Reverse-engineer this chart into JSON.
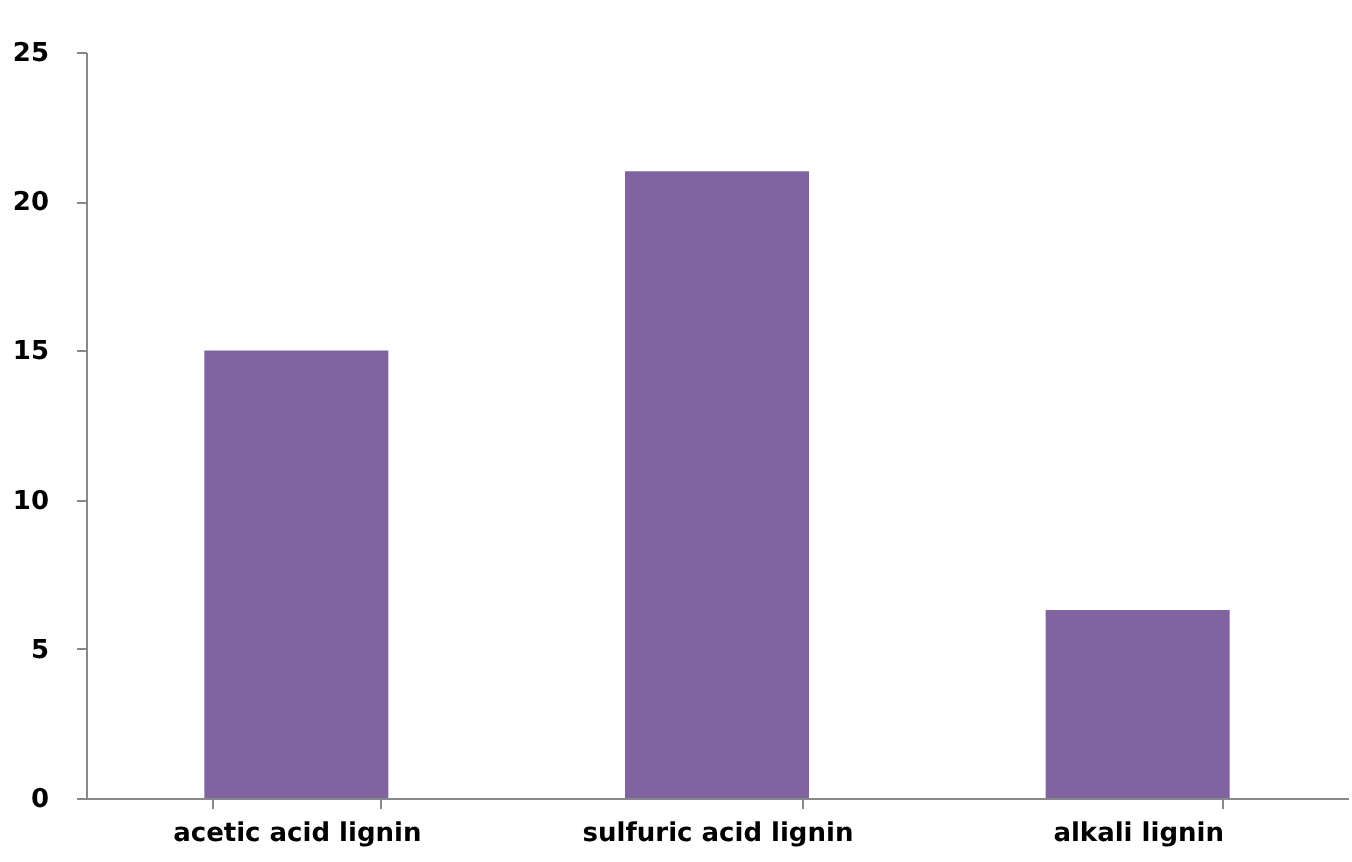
{
  "chart_data": {
    "type": "bar",
    "categories": [
      "acetic acid lignin",
      "sulfuric acid lignin",
      "alkali lignin"
    ],
    "values": [
      15,
      21,
      6.3
    ],
    "color": "#8064a2",
    "ylim": [
      0,
      25
    ],
    "yticks": [
      0,
      5,
      10,
      15,
      20,
      25
    ],
    "grid": false
  }
}
